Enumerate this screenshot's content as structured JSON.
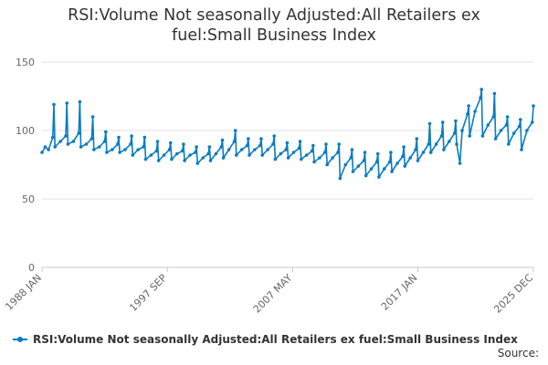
{
  "chart_data": {
    "type": "line",
    "title": "RSI:Volume Not seasonally Adjusted:All Retailers ex fuel:Small Business Index",
    "title_lines": [
      "RSI:Volume Not seasonally Adjusted:All Retailers ex",
      "fuel:Small Business Index"
    ],
    "x_tick_labels": [
      "1988 JAN",
      "1997 SEP",
      "2007 MAY",
      "2017 JAN",
      "2025 DEC"
    ],
    "x_range": [
      "1988-01",
      "2025-12"
    ],
    "y_ticks": [
      0,
      50,
      100,
      150
    ],
    "ylim": [
      0,
      150
    ],
    "grid": "horizontal",
    "legend_position": "bottom-left",
    "series": [
      {
        "name": "RSI:Volume Not seasonally Adjusted:All Retailers ex fuel:Small Business Index",
        "color": "#0a7cc1",
        "points": [
          [
            "1988-01",
            84
          ],
          [
            "1988-04",
            88
          ],
          [
            "1988-07",
            86
          ],
          [
            "1988-11",
            95
          ],
          [
            "1988-12",
            119
          ],
          [
            "1989-01",
            88
          ],
          [
            "1989-06",
            92
          ],
          [
            "1989-11",
            96
          ],
          [
            "1989-12",
            120
          ],
          [
            "1990-01",
            90
          ],
          [
            "1990-06",
            92
          ],
          [
            "1990-11",
            98
          ],
          [
            "1990-12",
            121
          ],
          [
            "1991-01",
            88
          ],
          [
            "1991-06",
            90
          ],
          [
            "1991-11",
            94
          ],
          [
            "1991-12",
            110
          ],
          [
            "1992-01",
            86
          ],
          [
            "1992-06",
            88
          ],
          [
            "1992-11",
            92
          ],
          [
            "1992-12",
            99
          ],
          [
            "1993-01",
            84
          ],
          [
            "1993-06",
            86
          ],
          [
            "1993-11",
            90
          ],
          [
            "1993-12",
            95
          ],
          [
            "1994-01",
            84
          ],
          [
            "1994-06",
            86
          ],
          [
            "1994-11",
            90
          ],
          [
            "1994-12",
            96
          ],
          [
            "1995-01",
            82
          ],
          [
            "1995-06",
            86
          ],
          [
            "1995-11",
            88
          ],
          [
            "1995-12",
            95
          ],
          [
            "1996-01",
            79
          ],
          [
            "1996-06",
            82
          ],
          [
            "1996-11",
            85
          ],
          [
            "1996-12",
            92
          ],
          [
            "1997-01",
            78
          ],
          [
            "1997-06",
            82
          ],
          [
            "1997-11",
            86
          ],
          [
            "1997-12",
            91
          ],
          [
            "1998-01",
            79
          ],
          [
            "1998-06",
            83
          ],
          [
            "1998-11",
            85
          ],
          [
            "1998-12",
            90
          ],
          [
            "1999-01",
            78
          ],
          [
            "1999-06",
            82
          ],
          [
            "1999-11",
            84
          ],
          [
            "1999-12",
            88
          ],
          [
            "2000-01",
            76
          ],
          [
            "2000-06",
            80
          ],
          [
            "2000-11",
            83
          ],
          [
            "2000-12",
            88
          ],
          [
            "2001-01",
            78
          ],
          [
            "2001-06",
            83
          ],
          [
            "2001-11",
            88
          ],
          [
            "2001-12",
            93
          ],
          [
            "2002-01",
            80
          ],
          [
            "2002-06",
            86
          ],
          [
            "2002-11",
            92
          ],
          [
            "2002-12",
            100
          ],
          [
            "2003-01",
            82
          ],
          [
            "2003-06",
            86
          ],
          [
            "2003-11",
            89
          ],
          [
            "2003-12",
            94
          ],
          [
            "2004-01",
            82
          ],
          [
            "2004-06",
            86
          ],
          [
            "2004-11",
            89
          ],
          [
            "2004-12",
            94
          ],
          [
            "2005-01",
            82
          ],
          [
            "2005-06",
            86
          ],
          [
            "2005-11",
            90
          ],
          [
            "2005-12",
            96
          ],
          [
            "2006-01",
            79
          ],
          [
            "2006-06",
            83
          ],
          [
            "2006-11",
            86
          ],
          [
            "2006-12",
            91
          ],
          [
            "2007-01",
            80
          ],
          [
            "2007-06",
            84
          ],
          [
            "2007-11",
            87
          ],
          [
            "2007-12",
            92
          ],
          [
            "2008-01",
            79
          ],
          [
            "2008-06",
            82
          ],
          [
            "2008-11",
            85
          ],
          [
            "2008-12",
            89
          ],
          [
            "2009-01",
            77
          ],
          [
            "2009-06",
            80
          ],
          [
            "2009-11",
            84
          ],
          [
            "2009-12",
            90
          ],
          [
            "2010-01",
            75
          ],
          [
            "2010-06",
            80
          ],
          [
            "2010-11",
            84
          ],
          [
            "2010-12",
            90
          ],
          [
            "2011-01",
            65
          ],
          [
            "2011-06",
            75
          ],
          [
            "2011-11",
            80
          ],
          [
            "2011-12",
            86
          ],
          [
            "2012-01",
            70
          ],
          [
            "2012-06",
            74
          ],
          [
            "2012-11",
            78
          ],
          [
            "2012-12",
            84
          ],
          [
            "2013-01",
            67
          ],
          [
            "2013-06",
            72
          ],
          [
            "2013-11",
            77
          ],
          [
            "2013-12",
            83
          ],
          [
            "2014-01",
            66
          ],
          [
            "2014-06",
            72
          ],
          [
            "2014-11",
            77
          ],
          [
            "2014-12",
            84
          ],
          [
            "2015-01",
            70
          ],
          [
            "2015-06",
            76
          ],
          [
            "2015-11",
            81
          ],
          [
            "2015-12",
            88
          ],
          [
            "2016-01",
            74
          ],
          [
            "2016-06",
            80
          ],
          [
            "2016-11",
            86
          ],
          [
            "2016-12",
            94
          ],
          [
            "2017-01",
            78
          ],
          [
            "2017-06",
            84
          ],
          [
            "2017-11",
            90
          ],
          [
            "2017-12",
            105
          ],
          [
            "2018-01",
            84
          ],
          [
            "2018-06",
            90
          ],
          [
            "2018-11",
            96
          ],
          [
            "2018-12",
            106
          ],
          [
            "2019-01",
            86
          ],
          [
            "2019-06",
            92
          ],
          [
            "2019-11",
            98
          ],
          [
            "2019-12",
            107
          ],
          [
            "2020-01",
            90
          ],
          [
            "2020-04",
            76
          ],
          [
            "2020-06",
            100
          ],
          [
            "2020-11",
            112
          ],
          [
            "2020-12",
            118
          ],
          [
            "2021-01",
            96
          ],
          [
            "2021-06",
            114
          ],
          [
            "2021-11",
            124
          ],
          [
            "2021-12",
            130
          ],
          [
            "2022-01",
            96
          ],
          [
            "2022-06",
            104
          ],
          [
            "2022-11",
            110
          ],
          [
            "2022-12",
            127
          ],
          [
            "2023-01",
            94
          ],
          [
            "2023-06",
            100
          ],
          [
            "2023-11",
            104
          ],
          [
            "2023-12",
            110
          ],
          [
            "2024-01",
            90
          ],
          [
            "2024-06",
            98
          ],
          [
            "2024-11",
            103
          ],
          [
            "2024-12",
            108
          ],
          [
            "2025-01",
            86
          ],
          [
            "2025-06",
            100
          ],
          [
            "2025-11",
            106
          ],
          [
            "2025-12",
            118
          ]
        ]
      }
    ]
  },
  "legend": {
    "label": "RSI:Volume Not seasonally Adjusted:All Retailers ex fuel:Small Business Index"
  },
  "source_label": "Source:"
}
